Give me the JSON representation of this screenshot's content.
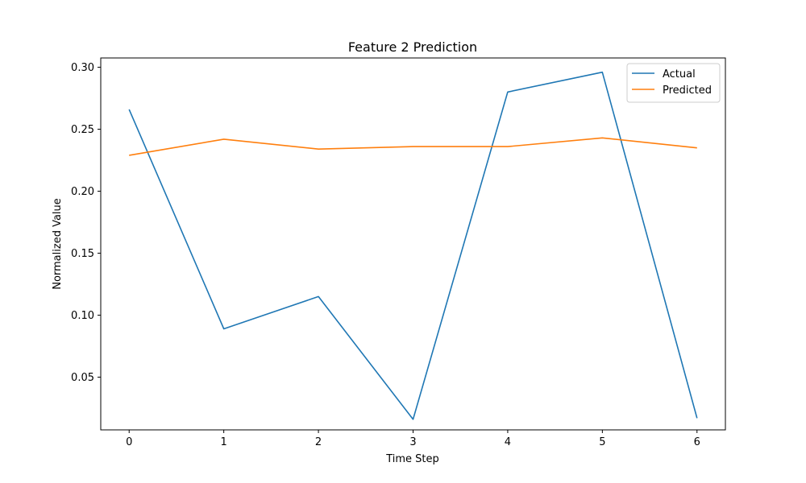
{
  "chart_data": {
    "type": "line",
    "title": "Feature 2 Prediction",
    "xlabel": "Time Step",
    "ylabel": "Normalized Value",
    "x": [
      0,
      1,
      2,
      3,
      4,
      5,
      6
    ],
    "xticks": [
      "0",
      "1",
      "2",
      "3",
      "4",
      "5",
      "6"
    ],
    "yticks": [
      "0.05",
      "0.10",
      "0.15",
      "0.20",
      "0.25",
      "0.30"
    ],
    "ytick_values": [
      0.05,
      0.1,
      0.15,
      0.2,
      0.25,
      0.3
    ],
    "xlim": [
      -0.3,
      6.3
    ],
    "ylim": [
      0.0075,
      0.3075
    ],
    "grid": false,
    "legend_position": "top-right",
    "series": [
      {
        "name": "Actual",
        "color": "#1f77b4",
        "values": [
          0.266,
          0.089,
          0.115,
          0.016,
          0.28,
          0.296,
          0.017
        ]
      },
      {
        "name": "Predicted",
        "color": "#ff7f0e",
        "values": [
          0.229,
          0.242,
          0.234,
          0.236,
          0.236,
          0.243,
          0.235
        ]
      }
    ]
  }
}
